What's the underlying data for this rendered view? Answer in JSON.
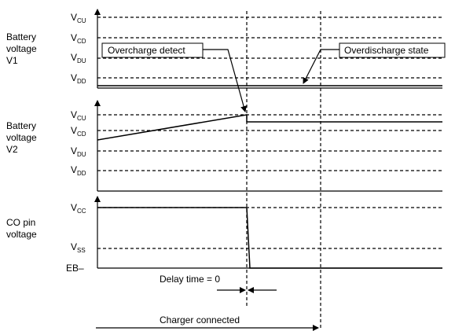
{
  "panels": [
    {
      "label_lines": [
        "Battery",
        "voltage",
        "V1"
      ],
      "levels": [
        {
          "main": "V",
          "sub": "CU"
        },
        {
          "main": "V",
          "sub": "CD"
        },
        {
          "main": "V",
          "sub": "DU"
        },
        {
          "main": "V",
          "sub": "DD"
        }
      ]
    },
    {
      "label_lines": [
        "Battery",
        "voltage",
        "V2"
      ],
      "levels": [
        {
          "main": "V",
          "sub": "CU"
        },
        {
          "main": "V",
          "sub": "CD"
        },
        {
          "main": "V",
          "sub": "DU"
        },
        {
          "main": "V",
          "sub": "DD"
        }
      ]
    },
    {
      "label_lines": [
        "CO pin",
        "voltage"
      ],
      "levels": [
        {
          "main": "V",
          "sub": "CC"
        },
        {
          "main": "V",
          "sub": "SS"
        },
        {
          "main": "EB–",
          "sub": ""
        }
      ]
    }
  ],
  "callouts": {
    "overcharge": "Overcharge detect",
    "overdischarge": "Overdischarge state"
  },
  "annotations": {
    "delay": "Delay time = 0",
    "charger": "Charger connected"
  }
}
